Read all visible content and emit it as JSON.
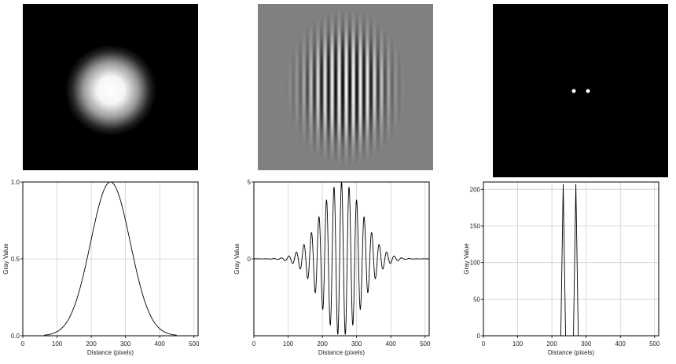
{
  "panels": [
    {
      "image": {
        "kind": "gaussian-spot",
        "background": "#000000"
      },
      "chart_data": {
        "type": "line",
        "xlabel": "Distance (pixels)",
        "ylabel": "Gray Value",
        "xlim": [
          0,
          512
        ],
        "ylim": [
          0,
          1.0
        ],
        "xticks": [
          0,
          100,
          200,
          300,
          400,
          500
        ],
        "yticks": [
          0.0,
          0.5,
          1.0
        ],
        "ytick_labels": [
          "0.0",
          "0.5",
          "1.0"
        ],
        "grid": true,
        "series": [
          {
            "x": [
              0,
              80,
              100,
              120,
              140,
              160,
              180,
              200,
              220,
              240,
              256,
              270,
              290,
              310,
              330,
              350,
              370,
              390,
              410,
              430,
              512
            ],
            "y": [
              0,
              0.0,
              0.012,
              0.04,
              0.1,
              0.21,
              0.37,
              0.56,
              0.77,
              0.94,
              1.0,
              0.97,
              0.84,
              0.64,
              0.43,
              0.25,
              0.12,
              0.045,
              0.012,
              0.0,
              0
            ]
          }
        ]
      }
    },
    {
      "image": {
        "kind": "gabor-pattern",
        "background": "#808080"
      },
      "chart_data": {
        "type": "line",
        "xlabel": "Distance (pixels)",
        "ylabel": "Gray Value",
        "xlim": [
          0,
          512
        ],
        "ylim": [
          -5,
          5
        ],
        "xticks": [
          0,
          100,
          200,
          300,
          400,
          500
        ],
        "yticks": [
          0,
          5
        ],
        "ytick_labels": [
          "0",
          "5"
        ],
        "grid": true,
        "series": [
          {
            "model": "envelope-oscillation",
            "amplitude": 5,
            "center": 256,
            "width": 60,
            "period": 22,
            "x_start": 0,
            "x_end": 512,
            "baseline": 0
          }
        ]
      }
    },
    {
      "image": {
        "kind": "two-dots",
        "background": "#000000"
      },
      "chart_data": {
        "type": "line",
        "xlabel": "Distance (pixels)",
        "ylabel": "Gray Value",
        "xlim": [
          0,
          512
        ],
        "ylim": [
          0,
          210
        ],
        "xticks": [
          0,
          100,
          200,
          300,
          400,
          500
        ],
        "yticks": [
          0,
          50,
          100,
          150,
          200
        ],
        "ytick_labels": [
          "0",
          "50",
          "100",
          "150",
          "200"
        ],
        "grid": true,
        "series": [
          {
            "x": [
              0,
              226,
              233,
              240,
              263,
              270,
              277,
              512
            ],
            "y": [
              0,
              0,
              207,
              0,
              0,
              207,
              0,
              0
            ]
          }
        ]
      }
    }
  ]
}
